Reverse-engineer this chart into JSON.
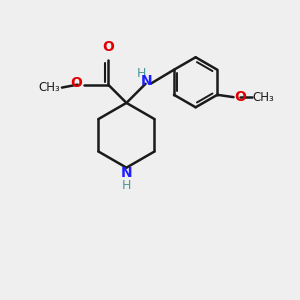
{
  "bg_color": "#efefef",
  "bond_color": "#1a1a1a",
  "bond_width": 1.8,
  "n_color": "#2020ff",
  "nh_color": "#4a9898",
  "o_color": "#e00000",
  "fig_size": [
    3.0,
    3.0
  ],
  "dpi": 100,
  "xlim": [
    0,
    10
  ],
  "ylim": [
    0,
    10
  ]
}
